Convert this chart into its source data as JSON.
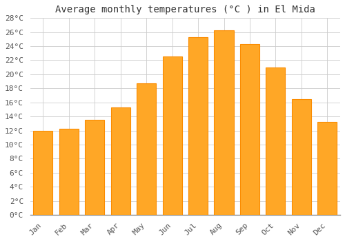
{
  "title": "Average monthly temperatures (°C ) in El Mida",
  "months": [
    "Jan",
    "Feb",
    "Mar",
    "Apr",
    "May",
    "Jun",
    "Jul",
    "Aug",
    "Sep",
    "Oct",
    "Nov",
    "Dec"
  ],
  "values": [
    12.0,
    12.2,
    13.5,
    15.3,
    18.7,
    22.5,
    25.3,
    26.3,
    24.3,
    21.0,
    16.5,
    13.2
  ],
  "bar_color": "#FFA726",
  "bar_edge_color": "#FB8C00",
  "background_color": "#FFFFFF",
  "grid_color": "#CCCCCC",
  "ylim": [
    0,
    28
  ],
  "ytick_step": 2,
  "title_fontsize": 10,
  "tick_fontsize": 8,
  "font_family": "monospace"
}
